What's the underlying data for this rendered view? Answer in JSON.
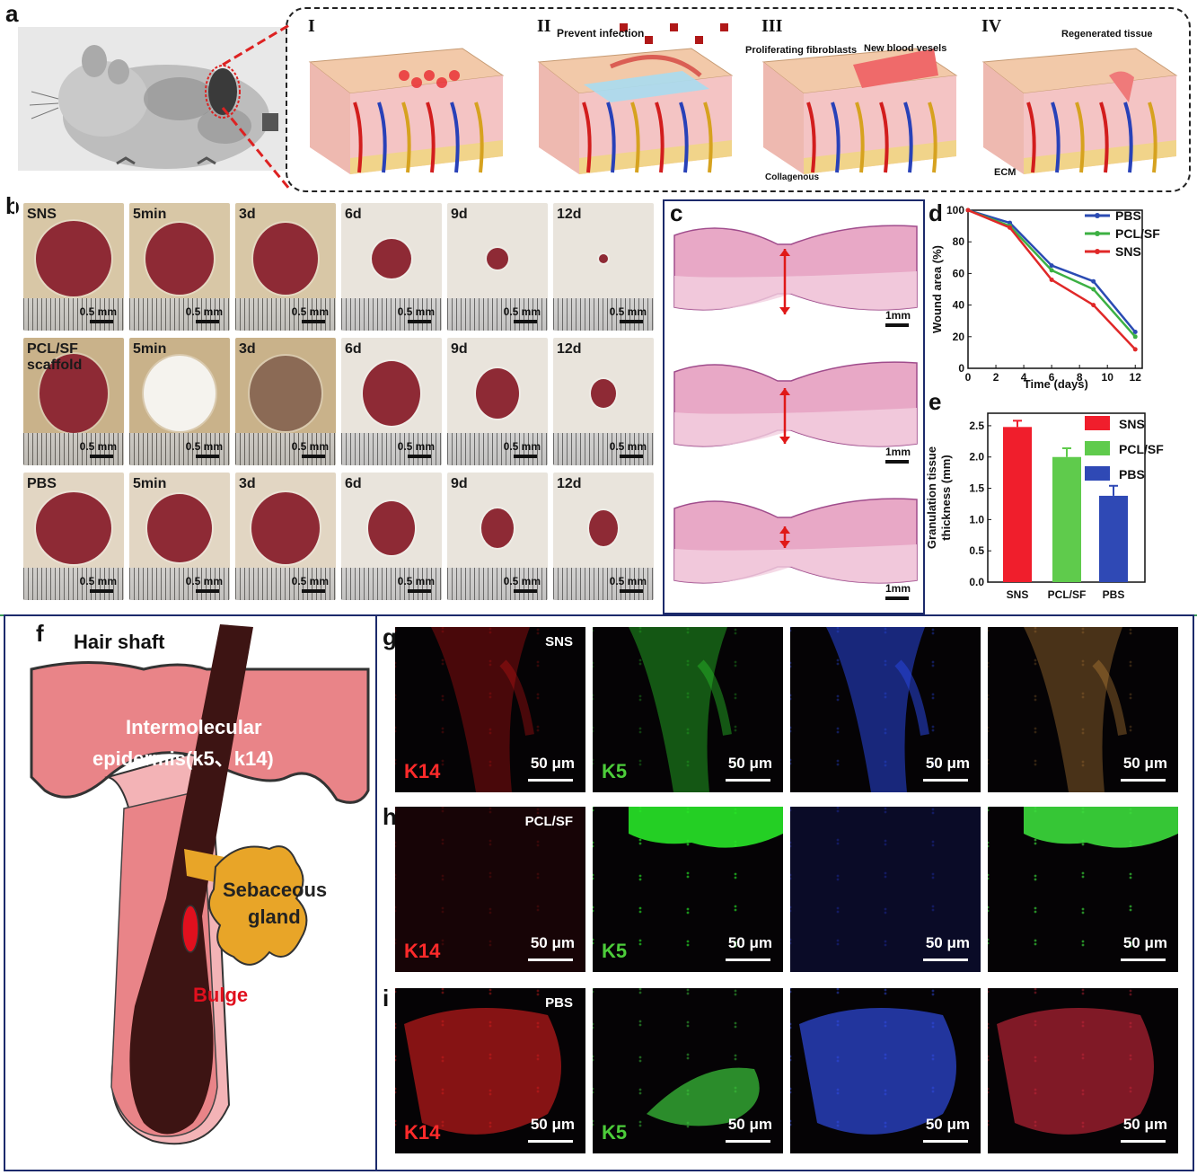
{
  "panel_letters": {
    "a": "a",
    "b": "b",
    "c": "c",
    "d": "d",
    "e": "e",
    "f": "f",
    "g": "g",
    "h": "h",
    "i": "i"
  },
  "panel_a": {
    "stages": [
      {
        "roman": "I",
        "labels": []
      },
      {
        "roman": "II",
        "labels": [
          "Prevent infection"
        ]
      },
      {
        "roman": "III",
        "labels": [
          "Proliferating fibroblasts",
          "New blood vesels",
          "Collagenous"
        ]
      },
      {
        "roman": "IV",
        "labels": [
          "Regenerated tissue",
          "ECM"
        ]
      }
    ]
  },
  "panel_b": {
    "rows": [
      {
        "group": "SNS",
        "cells": [
          "SNS",
          "5min",
          "3d",
          "6d",
          "9d",
          "12d"
        ]
      },
      {
        "group": "PCL/SF scaffold",
        "cells": [
          "PCL/SF\nscaffold",
          "5min",
          "3d",
          "6d",
          "9d",
          "12d"
        ]
      },
      {
        "group": "PBS",
        "cells": [
          "PBS",
          "5min",
          "3d",
          "6d",
          "9d",
          "12d"
        ]
      }
    ],
    "scale_label": "0.5 mm",
    "colors": {
      "skin": "#d9c9a8",
      "wound": "#8e2a35"
    }
  },
  "panel_c": {
    "scale_label": "1mm"
  },
  "chart_data": [
    {
      "type": "line",
      "xlabel": "Time (days)",
      "ylabel": "Wound area (%)",
      "xlim": [
        0,
        12.5
      ],
      "ylim": [
        0,
        100
      ],
      "xticks": [
        0,
        2,
        4,
        6,
        8,
        10,
        12
      ],
      "yticks": [
        0,
        20,
        40,
        60,
        80,
        100
      ],
      "x": [
        0,
        3,
        6,
        9,
        12
      ],
      "series": [
        {
          "name": "PBS",
          "color": "#2b4bb3",
          "values": [
            100,
            92,
            65,
            55,
            23
          ]
        },
        {
          "name": "PCL/SF",
          "color": "#3cb043",
          "values": [
            100,
            90,
            62,
            50,
            20
          ]
        },
        {
          "name": "SNS",
          "color": "#e02828",
          "values": [
            100,
            89,
            56,
            40,
            12
          ]
        }
      ],
      "legend": "top-right"
    },
    {
      "type": "bar",
      "categories": [
        "SNS",
        "PCL/SF",
        "PBS"
      ],
      "values": [
        2.48,
        2.0,
        1.38
      ],
      "errors": [
        0.1,
        0.14,
        0.16
      ],
      "colors": [
        "#f01e2c",
        "#5fcb4c",
        "#2f49b5"
      ],
      "ylabel": "Granulation tissue thickness (mm)",
      "ylabel_lines": [
        "Granulation tissue",
        "thickness (mm)"
      ],
      "ylim": [
        0,
        2.7
      ],
      "yticks": [
        "0.0",
        "0.5",
        "1.0",
        "1.5",
        "2.0",
        "2.5"
      ],
      "legend": "top-right"
    }
  ],
  "panel_f": {
    "hair_shaft": "Hair shaft",
    "epidermis_line1": "Intermolecular",
    "epidermis_line2": "epidermis(k5、k14)",
    "sebaceous_line1": "Sebaceous",
    "sebaceous_line2": "gland",
    "bulge": "Bulge"
  },
  "panel_ghi": {
    "rows": [
      {
        "letter": "g",
        "group": "SNS"
      },
      {
        "letter": "h",
        "group": "PCL/SF"
      },
      {
        "letter": "i",
        "group": "PBS"
      }
    ],
    "channels": {
      "k14": "K14",
      "k5": "K5"
    },
    "scale_label": "50 μm"
  }
}
